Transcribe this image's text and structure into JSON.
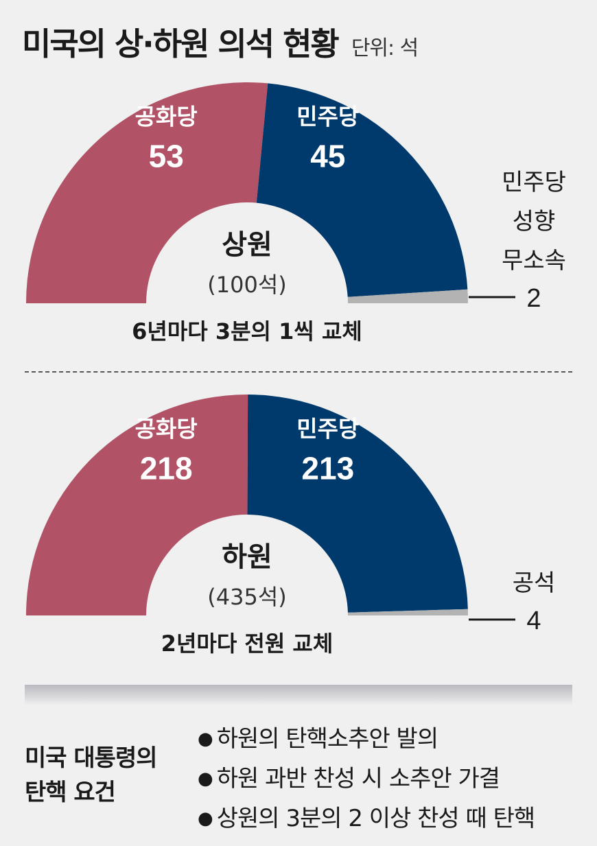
{
  "header": {
    "title": "미국의 상·하원 의석 현황",
    "unit": "단위: 석"
  },
  "chart_data": [
    {
      "type": "pie",
      "chamber": "상원",
      "total_label": "(100석)",
      "note": "6년마다 3분의 1씩 교체",
      "series": [
        {
          "name": "공화당",
          "value": 53,
          "color": "#b15266"
        },
        {
          "name": "민주당",
          "value": 45,
          "color": "#003a6c"
        },
        {
          "name": "민주당 성향 무소속",
          "value": 2,
          "color": "#b3b3b3"
        }
      ],
      "side_label_lines": [
        "민주당",
        "성향",
        "무소속"
      ],
      "side_value": "2"
    },
    {
      "type": "pie",
      "chamber": "하원",
      "total_label": "(435석)",
      "note": "2년마다 전원 교체",
      "series": [
        {
          "name": "공화당",
          "value": 218,
          "color": "#b15266"
        },
        {
          "name": "민주당",
          "value": 213,
          "color": "#003a6c"
        },
        {
          "name": "공석",
          "value": 4,
          "color": "#b3b3b3"
        }
      ],
      "side_label_lines": [
        "공석"
      ],
      "side_value": "4"
    }
  ],
  "requirements": {
    "title_lines": [
      "미국 대통령의",
      "탄핵 요건"
    ],
    "items": [
      "하원의 탄핵소추안 발의",
      "하원 과반 찬성 시 소추안 가결",
      "상원의 3분의 2 이상 찬성 때 탄핵"
    ]
  }
}
